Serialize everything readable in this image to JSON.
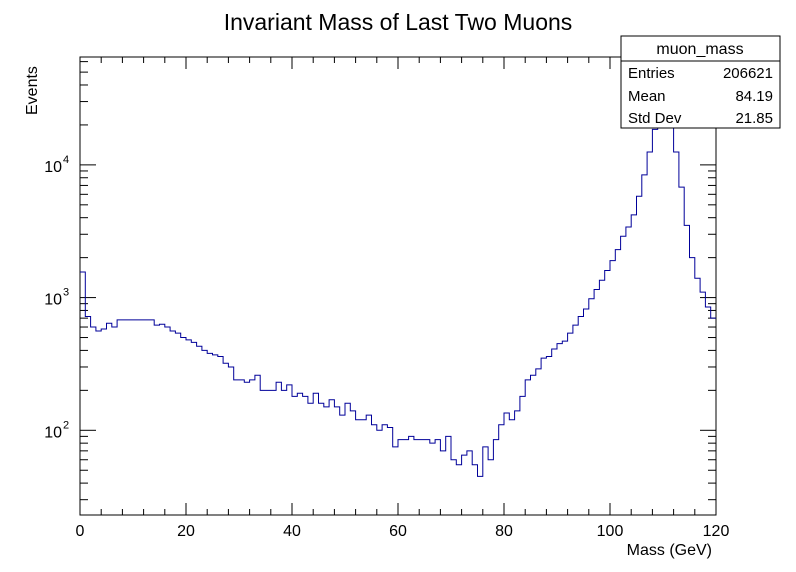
{
  "chart_data": {
    "type": "histogram",
    "title": "Invariant Mass of Last Two Muons",
    "xlabel": "Mass (GeV)",
    "ylabel": "Events",
    "xlim": [
      0,
      120
    ],
    "ylim": [
      23,
      65000
    ],
    "yscale": "log",
    "grid": false,
    "line_color": "#000099",
    "x_ticks": [
      "0",
      "20",
      "40",
      "60",
      "80",
      "100",
      "120"
    ],
    "y_ticks": [
      {
        "base": "10",
        "exp": "2",
        "value": 100
      },
      {
        "base": "10",
        "exp": "3",
        "value": 1000
      },
      {
        "base": "10",
        "exp": "4",
        "value": 10000
      }
    ],
    "bins": {
      "width": 1,
      "values": [
        1560,
        720,
        600,
        560,
        580,
        640,
        600,
        680,
        680,
        680,
        680,
        680,
        680,
        680,
        620,
        630,
        600,
        560,
        540,
        500,
        480,
        460,
        430,
        400,
        380,
        370,
        360,
        320,
        300,
        240,
        240,
        230,
        240,
        260,
        200,
        200,
        200,
        230,
        200,
        220,
        180,
        190,
        180,
        160,
        190,
        160,
        150,
        170,
        150,
        130,
        160,
        140,
        120,
        120,
        130,
        110,
        100,
        110,
        105,
        75,
        85,
        85,
        90,
        85,
        85,
        85,
        80,
        85,
        70,
        90,
        60,
        55,
        65,
        70,
        55,
        45,
        75,
        60,
        85,
        110,
        135,
        120,
        140,
        180,
        240,
        260,
        290,
        350,
        360,
        410,
        450,
        470,
        540,
        620,
        720,
        820,
        980,
        1150,
        1350,
        1600,
        1900,
        2300,
        2900,
        3400,
        4200,
        5800,
        8400,
        12500,
        18500,
        31000,
        33000,
        22500,
        12500,
        6800,
        3500,
        2000,
        1400,
        1100,
        850,
        700
      ]
    },
    "stats_box": {
      "title": "muon_mass",
      "rows": [
        {
          "label": "Entries",
          "value": "206621"
        },
        {
          "label": "Mean",
          "value": "84.19"
        },
        {
          "label": "Std Dev",
          "value": "21.85"
        }
      ]
    }
  }
}
